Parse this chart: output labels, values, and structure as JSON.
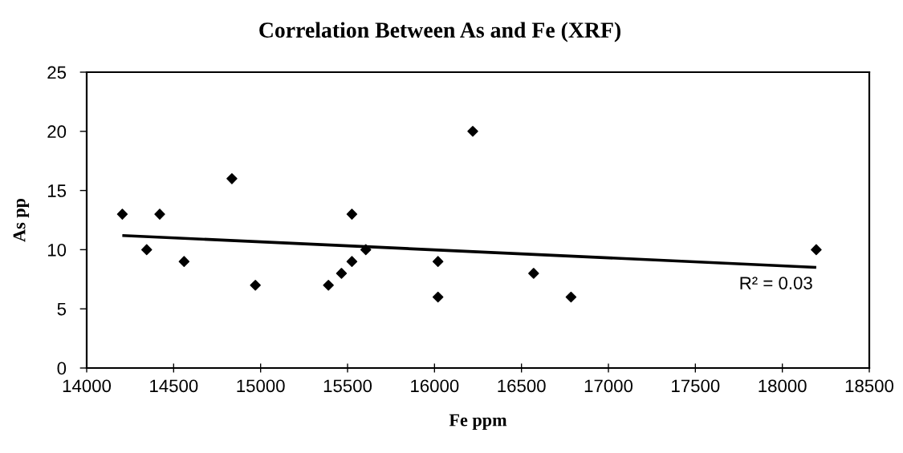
{
  "chart_data": {
    "type": "scatter",
    "title": "Correlation Between As and Fe (XRF)",
    "xlabel": "Fe ppm",
    "ylabel": "As pp",
    "series": [
      {
        "color": "#000000",
        "marker": "diamond",
        "x": [
          14205,
          14345,
          14420,
          14560,
          14835,
          14970,
          15390,
          15465,
          15525,
          15525,
          15605,
          16020,
          16020,
          16220,
          16570,
          16785,
          18195
        ],
        "values": [
          13,
          10,
          13,
          9,
          16,
          7,
          7,
          8,
          13,
          9,
          10,
          9,
          6,
          20,
          8,
          6,
          10
        ]
      },
      {
        "type": "line",
        "color": "#000000",
        "x": [
          14205,
          18195
        ],
        "values": [
          11.2,
          8.5
        ]
      }
    ],
    "xlim": [
      14000,
      18500
    ],
    "xticks": [
      14000,
      14500,
      15000,
      15500,
      16000,
      16500,
      17000,
      17500,
      18000,
      18500
    ],
    "ylim": [
      0,
      25
    ],
    "yticks": [
      0,
      5,
      10,
      15,
      20,
      25
    ],
    "grid": false,
    "annotations": [
      {
        "text": "R² = 0.03",
        "x": 18195,
        "y": 8.5
      }
    ]
  }
}
